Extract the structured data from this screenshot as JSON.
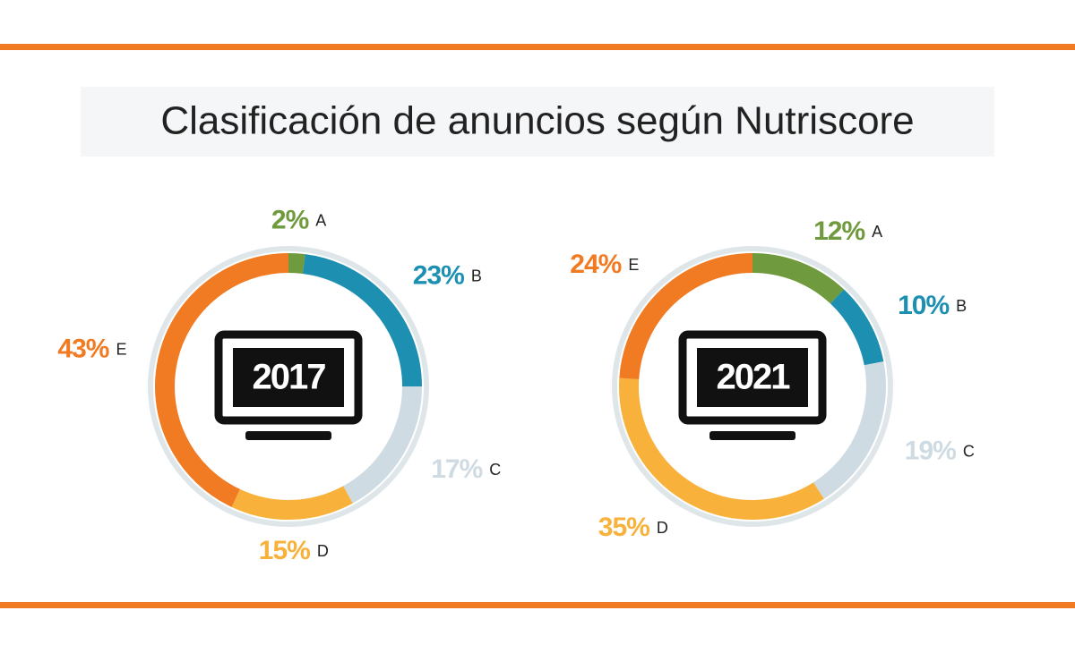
{
  "title": "Clasificación de anuncios según Nutriscore",
  "chart_data": [
    {
      "type": "donut",
      "title": "2017",
      "categories": [
        "A",
        "B",
        "C",
        "D",
        "E"
      ],
      "values": [
        2,
        23,
        17,
        15,
        43
      ],
      "value_labels": [
        "2%",
        "23%",
        "17%",
        "15%",
        "43%"
      ],
      "colors": [
        "#6f9a3d",
        "#1d90b2",
        "#cfdbe2",
        "#f8b23c",
        "#f07b22"
      ]
    },
    {
      "type": "donut",
      "title": "2021",
      "categories": [
        "A",
        "B",
        "C",
        "D",
        "E"
      ],
      "values": [
        12,
        10,
        19,
        35,
        24
      ],
      "value_labels": [
        "12%",
        "10%",
        "19%",
        "35%",
        "24%"
      ],
      "colors": [
        "#6f9a3d",
        "#1d90b2",
        "#cfdbe2",
        "#f8b23c",
        "#f07b22"
      ]
    }
  ]
}
